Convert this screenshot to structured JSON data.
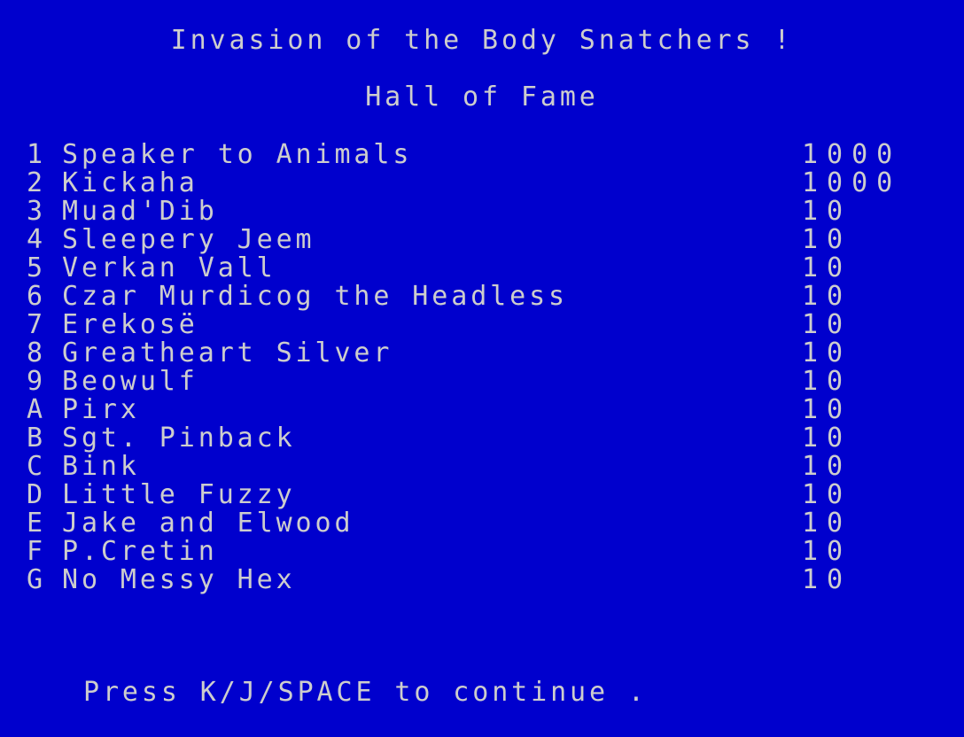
{
  "title": "Invasion of the Body Snatchers !",
  "subtitle": "Hall of Fame",
  "entries": [
    {
      "rank": "1",
      "name": "Speaker to Animals",
      "score": "1000"
    },
    {
      "rank": "2",
      "name": "Kickaha",
      "score": "1000"
    },
    {
      "rank": "3",
      "name": "Muad'Dib",
      "score": "10"
    },
    {
      "rank": "4",
      "name": "Sleepery Jeem",
      "score": "10"
    },
    {
      "rank": "5",
      "name": "Verkan Vall",
      "score": "10"
    },
    {
      "rank": "6",
      "name": "Czar Murdicog the Headless",
      "score": "10"
    },
    {
      "rank": "7",
      "name": "Erekosë",
      "score": "10"
    },
    {
      "rank": "8",
      "name": "Greatheart Silver",
      "score": "10"
    },
    {
      "rank": "9",
      "name": "Beowulf",
      "score": "10"
    },
    {
      "rank": "A",
      "name": "Pirx",
      "score": "10"
    },
    {
      "rank": "B",
      "name": "Sgt. Pinback",
      "score": "10"
    },
    {
      "rank": "C",
      "name": "Bink",
      "score": "10"
    },
    {
      "rank": "D",
      "name": "Little Fuzzy",
      "score": "10"
    },
    {
      "rank": "E",
      "name": "Jake and Elwood",
      "score": "10"
    },
    {
      "rank": "F",
      "name": "P.Cretin",
      "score": "10"
    },
    {
      "rank": "G",
      "name": "No Messy Hex",
      "score": "10"
    }
  ],
  "prompt": "Press K/J/SPACE to continue .",
  "colors": {
    "background": "#0000cd",
    "text": "#cdcdcd"
  }
}
